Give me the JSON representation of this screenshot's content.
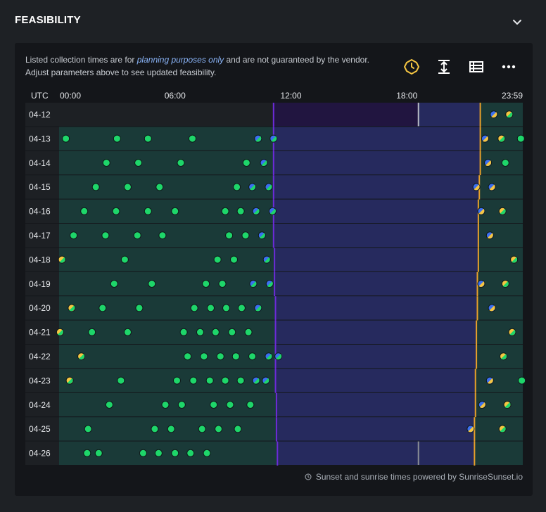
{
  "section": {
    "title": "FEASIBILITY"
  },
  "note": {
    "prefix": "Listed collection times are for ",
    "emphasis": "planning purposes only",
    "suffix": " and are not guaranteed by the vendor. Adjust parameters above to see updated feasibility."
  },
  "toolbar": {
    "icons": [
      "timezone-icon",
      "expand-vertical-icon",
      "table-view-icon",
      "more-options-icon"
    ],
    "accent": "#f5c542"
  },
  "timeline": {
    "tz_label": "UTC",
    "hour_ticks": [
      {
        "label": "00:00",
        "hour": 0
      },
      {
        "label": "06:00",
        "hour": 6
      },
      {
        "label": "12:00",
        "hour": 12
      },
      {
        "label": "18:00",
        "hour": 18
      },
      {
        "label": "23:59",
        "hour": 24
      }
    ],
    "colors": {
      "row_bg": "#1a3a38",
      "night_bg": "#262a5e",
      "past_bg": "#211540",
      "now_line": "#6c2bd9",
      "sunset_line": "#e8a12a",
      "dot_green": "#1ed66a",
      "dot_blue": "#3b6ff0",
      "dot_yellow": "#f5c542"
    },
    "rows": [
      {
        "date": "04-12",
        "sunrise": 11.1,
        "sunset": 21.8,
        "green": [],
        "blue": [],
        "mixed": [
          22.5
        ],
        "gy": [
          23.3
        ],
        "past_until": 18.6
      },
      {
        "date": "04-13",
        "sunrise": 11.1,
        "sunset": 21.8,
        "green": [
          0.35,
          3.0,
          4.6,
          6.9,
          23.9
        ],
        "blue": [
          10.3
        ],
        "mixed": [],
        "gb": [
          11.1
        ],
        "by": [
          22.05
        ],
        "gy": [
          22.9
        ]
      },
      {
        "date": "04-14",
        "sunrise": 11.1,
        "sunset": 21.8,
        "green": [
          2.45,
          4.1,
          6.3,
          9.7,
          23.1
        ],
        "blue": [],
        "gb": [
          10.6
        ],
        "by": [
          22.2
        ]
      },
      {
        "date": "04-15",
        "sunrise": 11.1,
        "sunset": 21.75,
        "green": [
          1.9,
          3.55,
          5.2,
          9.2
        ],
        "blue": [
          10.0
        ],
        "gb": [
          10.85
        ],
        "by": [
          21.6,
          22.4
        ]
      },
      {
        "date": "04-16",
        "sunrise": 11.1,
        "sunset": 21.7,
        "green": [
          1.3,
          2.95,
          4.6,
          6.0,
          8.6,
          9.4
        ],
        "blue": [
          10.2
        ],
        "gb": [
          11.05
        ],
        "by": [
          21.85
        ],
        "gy": [
          22.95
        ]
      },
      {
        "date": "04-17",
        "sunrise": 11.1,
        "sunset": 21.7,
        "green": [
          0.75,
          2.4,
          4.05,
          5.35,
          8.8,
          9.65
        ],
        "blue": [],
        "gb": [
          10.5
        ],
        "by": [
          22.3
        ]
      },
      {
        "date": "04-18",
        "sunrise": 11.15,
        "sunset": 21.7,
        "green": [
          3.4,
          8.2,
          9.05
        ],
        "blue": [],
        "gb": [
          10.75
        ],
        "gy": [
          0.15,
          23.55
        ]
      },
      {
        "date": "04-19",
        "sunrise": 11.15,
        "sunset": 21.65,
        "green": [
          2.85,
          4.8,
          7.6,
          8.45
        ],
        "blue": [
          10.05
        ],
        "gb": [
          10.9
        ],
        "by": [
          21.85
        ],
        "gy": [
          23.1
        ]
      },
      {
        "date": "04-20",
        "sunrise": 11.2,
        "sunset": 21.65,
        "green": [
          2.25,
          4.15,
          7.0,
          7.85,
          8.65,
          9.45
        ],
        "blue": [],
        "gb": [
          10.3
        ],
        "by": [
          22.4
        ],
        "gy": [
          0.65
        ]
      },
      {
        "date": "04-21",
        "sunrise": 11.2,
        "sunset": 21.6,
        "green": [
          1.7,
          3.55,
          6.45,
          7.3,
          8.1,
          8.95,
          9.8
        ],
        "blue": [],
        "gy": [
          0.05,
          23.45
        ]
      },
      {
        "date": "04-22",
        "sunrise": 11.2,
        "sunset": 21.6,
        "green": [
          6.65,
          7.5,
          8.35,
          9.15,
          10.0
        ],
        "blue": [
          10.85
        ],
        "gb": [
          11.35
        ],
        "gy": [
          1.15,
          23.0
        ]
      },
      {
        "date": "04-23",
        "sunrise": 11.2,
        "sunset": 21.55,
        "green": [
          3.2,
          6.1,
          6.95,
          7.8,
          8.6,
          9.4
        ],
        "blue": [
          10.2,
          10.7
        ],
        "by": [
          22.3
        ],
        "gy": [
          0.55
        ],
        "green2": [
          23.95
        ]
      },
      {
        "date": "04-24",
        "sunrise": 11.25,
        "sunset": 21.55,
        "green": [
          2.6,
          5.5,
          6.35,
          8.0,
          8.85,
          9.9
        ],
        "blue": [],
        "by": [
          21.9
        ],
        "gy": [
          23.2
        ]
      },
      {
        "date": "04-25",
        "sunrise": 11.25,
        "sunset": 21.5,
        "green": [
          1.5,
          4.95,
          5.8,
          7.4,
          8.25,
          9.25
        ],
        "blue": [],
        "by": [
          21.3
        ],
        "gy": [
          22.95
        ]
      },
      {
        "date": "04-26",
        "sunrise": 11.3,
        "sunset": 21.5,
        "green": [
          1.45,
          2.05,
          4.35,
          5.15,
          6.0,
          6.8,
          7.65
        ],
        "blue": [],
        "future_from": 18.6
      }
    ]
  },
  "footer": {
    "text": "Sunset and sunrise times powered by SunriseSunset.io"
  }
}
